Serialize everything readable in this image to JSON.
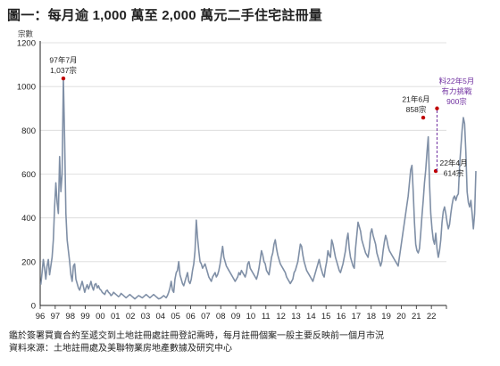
{
  "title": "圖一：每月逾 1,000 萬至 2,000 萬元二手住宅註冊量",
  "footer": {
    "note": "鑑於簽署買賣合約至遞交到土地註冊處註冊登記需時，每月註冊個案一般主要反映前一個月市況",
    "source": "資料來源：土地註冊處及美聯物業房地產數據及研究中心"
  },
  "colors": {
    "line": "#7f8fa6",
    "axis": "#222222",
    "grid": "#d9d9d9",
    "highlight_point": "#c00000",
    "projection": "#7030a0"
  },
  "chart_data": {
    "type": "line",
    "title": "圖一：每月逾 1,000 萬至 2,000 萬元二手住宅註冊量",
    "ylabel": "宗數",
    "xlabel": "",
    "ylim": [
      0,
      1200
    ],
    "yticks": [
      "0",
      "200",
      "400",
      "600",
      "800",
      "1000",
      "1200"
    ],
    "xticks": [
      "96",
      "97",
      "98",
      "99",
      "00",
      "01",
      "02",
      "03",
      "04",
      "05",
      "06",
      "07",
      "08",
      "09",
      "10",
      "11",
      "12",
      "13",
      "14",
      "15",
      "16",
      "17",
      "18",
      "19",
      "20",
      "21",
      "22"
    ],
    "grid": "horizontal",
    "start": "1996-01",
    "series": [
      {
        "values": [
          95,
          150,
          210,
          170,
          120,
          180,
          210,
          140,
          180,
          220,
          300,
          450,
          560,
          470,
          420,
          680,
          520,
          600,
          1037,
          760,
          420,
          300,
          250,
          200,
          140,
          110,
          180,
          190,
          120,
          100,
          80,
          70,
          90,
          110,
          85,
          60,
          80,
          95,
          75,
          90,
          110,
          85,
          70,
          95,
          100,
          80,
          90,
          75,
          70,
          60,
          55,
          50,
          65,
          70,
          60,
          55,
          45,
          50,
          60,
          55,
          50,
          45,
          40,
          45,
          55,
          50,
          45,
          40,
          35,
          40,
          45,
          50,
          45,
          40,
          35,
          30,
          35,
          40,
          45,
          42,
          38,
          35,
          40,
          45,
          50,
          45,
          40,
          35,
          40,
          45,
          50,
          45,
          40,
          35,
          30,
          32,
          35,
          40,
          45,
          40,
          35,
          45,
          60,
          80,
          110,
          70,
          60,
          120,
          150,
          160,
          200,
          140,
          120,
          100,
          90,
          110,
          130,
          150,
          110,
          100,
          120,
          160,
          190,
          250,
          390,
          310,
          250,
          200,
          190,
          170,
          180,
          190,
          170,
          150,
          130,
          120,
          110,
          130,
          140,
          150,
          130,
          140,
          160,
          190,
          230,
          270,
          220,
          200,
          180,
          170,
          160,
          150,
          140,
          130,
          120,
          110,
          120,
          130,
          150,
          140,
          160,
          150,
          140,
          130,
          150,
          190,
          200,
          170,
          160,
          150,
          140,
          130,
          120,
          140,
          170,
          210,
          250,
          230,
          200,
          190,
          160,
          150,
          140,
          180,
          220,
          240,
          280,
          300,
          260,
          230,
          210,
          190,
          180,
          170,
          160,
          150,
          130,
          120,
          110,
          100,
          110,
          120,
          150,
          160,
          180,
          200,
          240,
          280,
          270,
          230,
          200,
          180,
          160,
          150,
          140,
          130,
          120,
          110,
          130,
          150,
          170,
          190,
          210,
          180,
          160,
          140,
          130,
          170,
          200,
          250,
          230,
          220,
          300,
          280,
          250,
          220,
          200,
          180,
          160,
          150,
          170,
          190,
          220,
          250,
          300,
          330,
          260,
          220,
          200,
          180,
          170,
          260,
          320,
          380,
          360,
          340,
          300,
          280,
          260,
          240,
          230,
          220,
          260,
          330,
          350,
          320,
          300,
          280,
          240,
          220,
          200,
          180,
          200,
          250,
          290,
          320,
          300,
          270,
          250,
          240,
          230,
          220,
          210,
          200,
          190,
          180,
          220,
          260,
          300,
          340,
          380,
          420,
          460,
          500,
          560,
          620,
          640,
          520,
          380,
          280,
          250,
          240,
          260,
          330,
          410,
          480,
          560,
          620,
          700,
          770,
          560,
          420,
          350,
          300,
          280,
          330,
          260,
          220,
          250,
          300,
          380,
          430,
          450,
          420,
          380,
          350,
          370,
          420,
          460,
          490,
          500,
          480,
          500,
          510,
          640,
          720,
          800,
          858,
          830,
          700,
          520,
          470,
          450,
          480,
          420,
          350,
          420,
          614
        ]
      }
    ],
    "annotations": [
      {
        "date": "1997-07",
        "value": 1037,
        "lines": [
          "97年7月",
          "1,037宗"
        ]
      },
      {
        "date": "2021-06",
        "value": 858,
        "lines": [
          "21年6月",
          "858宗"
        ]
      },
      {
        "date": "2022-04",
        "value": 614,
        "lines": [
          "22年4月",
          "614宗"
        ]
      },
      {
        "date": "2022-05",
        "value": 900,
        "lines": [
          "料22年5月",
          "有力挑戰",
          "900宗"
        ],
        "projection": true
      }
    ]
  }
}
